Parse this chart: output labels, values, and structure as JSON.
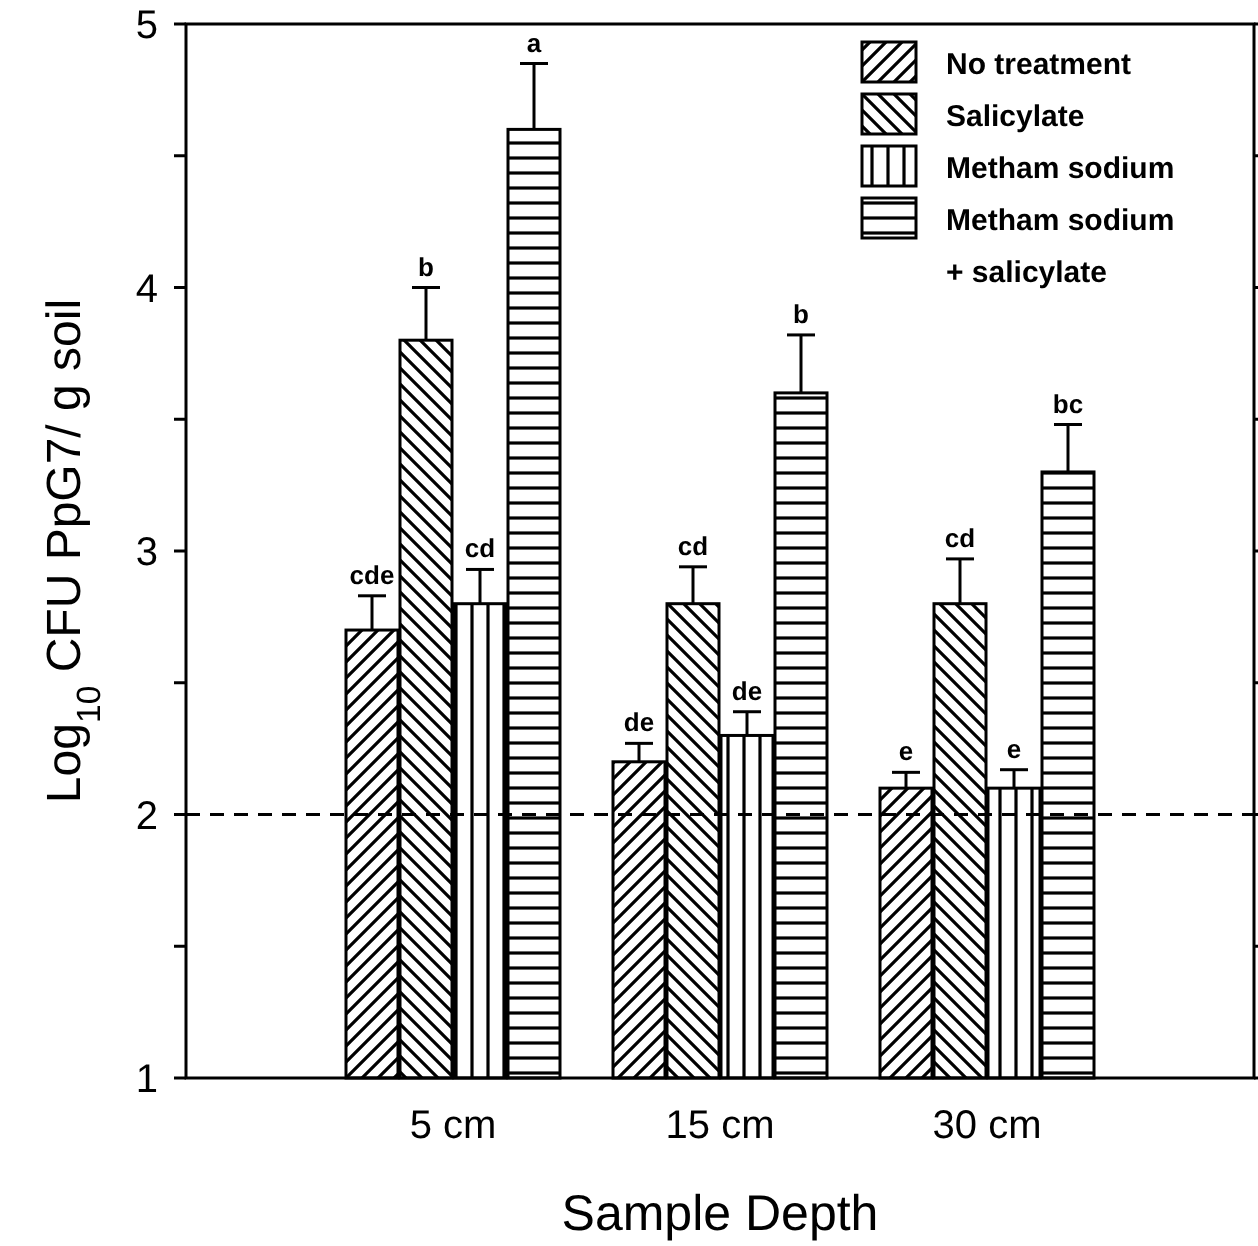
{
  "chart_data": {
    "type": "bar",
    "xlabel": "Sample Depth",
    "ylabel": "Log$_{10}$ CFU PpG7/ g soil",
    "categories": [
      "5 cm",
      "15 cm",
      "30 cm"
    ],
    "ylim": [
      1,
      5
    ],
    "yticks": [
      1,
      {
        "value": 1.5,
        "label": null
      },
      2,
      {
        "value": 2.5,
        "label": null
      },
      3,
      {
        "value": 3.5,
        "label": null
      },
      4,
      {
        "value": 4.5,
        "label": null
      },
      5
    ],
    "series": [
      {
        "name": "No treatment",
        "color": "#000000",
        "values": [
          2.7,
          2.2,
          2.1
        ],
        "errors": [
          [
            2.7,
            2.83
          ],
          [
            2.2,
            2.27
          ],
          [
            2.1,
            2.16
          ]
        ],
        "value_labels": [
          "cde",
          "de",
          "e"
        ]
      },
      {
        "name": "Salicylate",
        "color": "#000000",
        "values": [
          3.8,
          2.8,
          2.8
        ],
        "errors": [
          [
            3.8,
            4.0
          ],
          [
            2.8,
            2.94
          ],
          [
            2.8,
            2.97
          ]
        ],
        "value_labels": [
          "b",
          "cd",
          "cd"
        ]
      },
      {
        "name": "Metham sodium",
        "color": "#000000",
        "values": [
          2.8,
          2.3,
          2.1
        ],
        "errors": [
          [
            2.8,
            2.93
          ],
          [
            2.3,
            2.39
          ],
          [
            2.1,
            2.17
          ]
        ],
        "value_labels": [
          "cd",
          "de",
          "e"
        ]
      },
      {
        "name": "Metham sodium + salicylate",
        "color": "#000000",
        "values": [
          4.6,
          3.6,
          3.3
        ],
        "errors": [
          [
            4.6,
            4.85
          ],
          [
            3.6,
            3.82
          ],
          [
            3.3,
            3.48
          ]
        ],
        "value_labels": [
          "a",
          "b",
          "bc"
        ]
      }
    ],
    "ref_lines": [
      {
        "axis": "y",
        "value": 2,
        "line_style": "dashed",
        "color": "#000000"
      }
    ],
    "legend": "top right",
    "grid": false
  }
}
